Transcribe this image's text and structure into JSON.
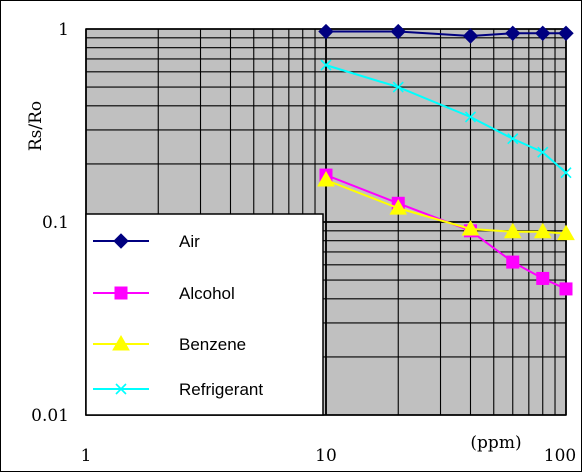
{
  "chart_data": {
    "type": "line",
    "xscale": "log",
    "yscale": "log",
    "xlim": [
      1,
      100
    ],
    "ylim": [
      0.01,
      1
    ],
    "grid": true,
    "ylabel": "Rs/Ro",
    "xunit": "(ppm)",
    "x_ticks": [
      {
        "value": 1,
        "label": "1"
      },
      {
        "value": 10,
        "label": "10"
      },
      {
        "value": 100,
        "label": "100"
      }
    ],
    "y_ticks": [
      {
        "value": 1,
        "label": "1"
      },
      {
        "value": 0.1,
        "label": "0.1"
      },
      {
        "value": 0.01,
        "label": "0.01"
      }
    ],
    "legend": "lower-left",
    "series": [
      {
        "name": "Air",
        "color": "#000080",
        "marker": "diamond",
        "x": [
          10,
          20,
          40,
          60,
          80,
          100
        ],
        "y": [
          0.97,
          0.97,
          0.92,
          0.95,
          0.95,
          0.95
        ]
      },
      {
        "name": "Alcohol",
        "color": "#ff00ff",
        "marker": "square",
        "x": [
          10,
          20,
          40,
          60,
          80,
          100
        ],
        "y": [
          0.175,
          0.125,
          0.09,
          0.062,
          0.051,
          0.045
        ]
      },
      {
        "name": "Benzene",
        "color": "#ffff00",
        "marker": "triangle",
        "x": [
          10,
          20,
          40,
          60,
          80,
          100
        ],
        "y": [
          0.165,
          0.118,
          0.092,
          0.089,
          0.089,
          0.087
        ]
      },
      {
        "name": "Refrigerant",
        "color": "#00ffff",
        "marker": "x",
        "x": [
          10,
          20,
          40,
          60,
          80,
          100
        ],
        "y": [
          0.65,
          0.5,
          0.35,
          0.27,
          0.23,
          0.18
        ]
      }
    ]
  }
}
